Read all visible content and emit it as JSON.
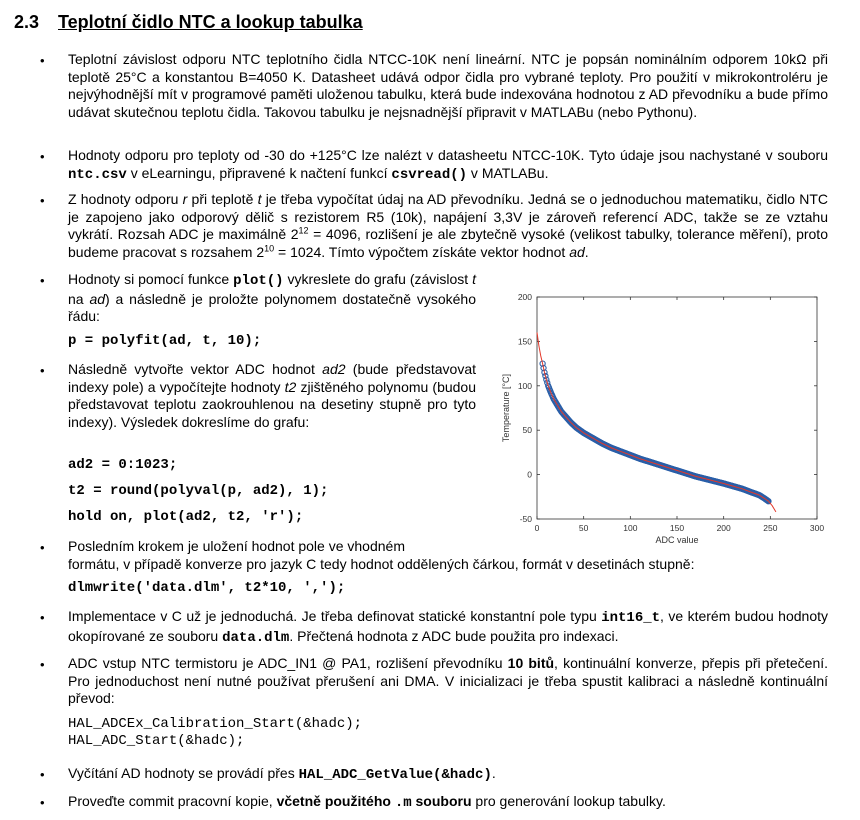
{
  "section": {
    "number": "2.3",
    "title": "Teplotní čidlo NTC a lookup tabulka"
  },
  "bullets": {
    "b1": {
      "text": "Teplotní závislost odporu NTC teplotního čidla NTCC-10K není lineární. NTC je popsán nominálním odporem 10kΩ při teplotě 25°C a konstantou B=4050 K. Datasheet udává odpor čidla pro vybrané teploty. Pro použití v mikrokontroléru je nejvýhodnější mít v programové paměti uloženou tabulku, která bude indexována hodnotou z AD převodníku a bude přímo udávat skutečnou teplotu čidla. Takovou tabulku je nejsnadnější připravit v MATLABu (nebo Pythonu)."
    },
    "b2": {
      "t1": "Hodnoty odporu pro teploty od -30 do +125°C lze nalézt v datasheetu NTCC-10K. Tyto údaje jsou nachystané v souboru ",
      "c1": "ntc.csv",
      "t2": " v eLearningu, připravené k načtení funkcí ",
      "c2": "csvread()",
      "t3": " v MATLABu."
    },
    "b3": {
      "t1": "Z hodnoty odporu ",
      "i1": "r",
      "t2": " při teplotě ",
      "i2": "t",
      "t3": " je třeba vypočítat údaj na AD převodníku. Jedná se o jednoduchou matematiku, čidlo NTC je zapojeno jako odporový dělič s rezistorem R5 (10k), napájení 3,3V je zároveň referencí ADC, takže se ze vztahu vykrátí. Rozsah ADC je maximálně 2",
      "s1": "12",
      "t4": " = 4096, rozlišení je ale zbytečně vysoké (velikost tabulky, tolerance měření), proto budeme pracovat s rozsahem 2",
      "s2": "10",
      "t5": " = 1024. Tímto výpočtem získáte vektor hodnot ",
      "i3": "ad",
      "t6": "."
    },
    "b4": {
      "t1": "Hodnoty si pomocí funkce ",
      "c1": "plot()",
      "t2": " vykreslete do grafu (závislost ",
      "i1": "t",
      "t3": " na ",
      "i2": "ad",
      "t4": ") a následně je proložte polynomem dostatečně vysokého řádu:",
      "code": "p = polyfit(ad, t, 10);"
    },
    "b5": {
      "t1": "Následně vytvořte vektor ADC hodnot ",
      "i1": "ad2",
      "t2": " (bude představovat indexy pole) a vypočítejte hodnoty ",
      "i2": "t2",
      "t3": " zjištěného polynomu (budou představovat teplotu zaokrouhlenou na desetiny stupně pro tyto indexy). Výsledek dokreslíme do grafu:",
      "code1": "ad2 = 0:1023;",
      "code2": "t2 = round(polyval(p, ad2), 1);",
      "code3": "hold on, plot(ad2, t2, 'r');"
    },
    "b6": {
      "line1": "Posledním krokem je uložení hodnot pole ve vhodném",
      "line2": "formátu, v případě konverze pro jazyk C tedy hodnot oddělených čárkou, formát v desetinách stupně:",
      "code": "dlmwrite('data.dlm', t2*10, ',');"
    },
    "b7": {
      "t1": "Implementace v C už je jednoduchá. Je třeba definovat statické konstantní pole typu ",
      "c1": "int16_t",
      "t2": ", ve kterém budou hodnoty okopírované ze souboru ",
      "c2": "data.dlm",
      "t3": ". Přečtená hodnota z ADC bude použita pro indexaci."
    },
    "b8": {
      "t1": "ADC vstup NTC termistoru je ADC_IN1 @ PA1, rozlišení převodníku ",
      "b1": "10 bitů",
      "t2": ", kontinuální konverze, přepis při přetečení. Pro jednoduchost není nutné používat přerušení ani DMA. V inicializaci je třeba spustit kalibraci a následně kontinuální převod:",
      "code1": "HAL_ADCEx_Calibration_Start(&hadc);",
      "code2": "HAL_ADC_Start(&hadc);"
    },
    "b9": {
      "t1": "Vyčítání AD hodnoty se provádí přes ",
      "c1": "HAL_ADC_GetValue(&hadc)",
      "t2": "."
    },
    "b10": {
      "t1": "Proveďte commit pracovní kopie, ",
      "b1": "včetně použitého ",
      "c1": ".m",
      "b2": " souboru",
      "t2": " pro generování lookup tabulky."
    },
    "bullet_char": "•"
  },
  "chart_data": {
    "type": "line",
    "xlabel": "ADC value",
    "ylabel": "Temperature [°C]",
    "xlim": [
      0,
      300
    ],
    "ylim": [
      -50,
      200
    ],
    "xticks": [
      "0",
      "50",
      "100",
      "150",
      "200",
      "250",
      "300"
    ],
    "yticks": [
      "-50",
      "0",
      "50",
      "100",
      "150",
      "200"
    ],
    "grid": false,
    "series": [
      {
        "style": "markers",
        "color": "#2a5fa8",
        "x": [
          6,
          8,
          10,
          12,
          15,
          18,
          22,
          26,
          31,
          36,
          42,
          50,
          60,
          70,
          80,
          95,
          110,
          125,
          140,
          155,
          170,
          185,
          200,
          210,
          220,
          230,
          238,
          244,
          248
        ],
        "y": [
          125,
          115,
          107,
          100,
          92,
          85,
          78,
          71,
          65,
          59,
          53,
          47,
          41,
          35,
          30,
          24,
          18,
          13,
          8,
          3,
          -2,
          -6,
          -10,
          -13,
          -16,
          -20,
          -23,
          -27,
          -30
        ]
      },
      {
        "style": "line",
        "color": "#e3392b",
        "x": [
          0,
          2,
          4,
          6,
          8,
          10,
          12,
          15,
          18,
          22,
          26,
          31,
          36,
          42,
          50,
          60,
          70,
          80,
          95,
          110,
          125,
          140,
          155,
          170,
          185,
          200,
          210,
          220,
          230,
          238,
          244,
          248,
          252,
          256
        ],
        "y": [
          160,
          145,
          134,
          125,
          115,
          107,
          100,
          92,
          85,
          78,
          71,
          65,
          59,
          53,
          47,
          41,
          35,
          30,
          24,
          18,
          13,
          8,
          3,
          -2,
          -6,
          -10,
          -13,
          -16,
          -20,
          -23,
          -27,
          -30,
          -35,
          -42
        ]
      }
    ]
  }
}
